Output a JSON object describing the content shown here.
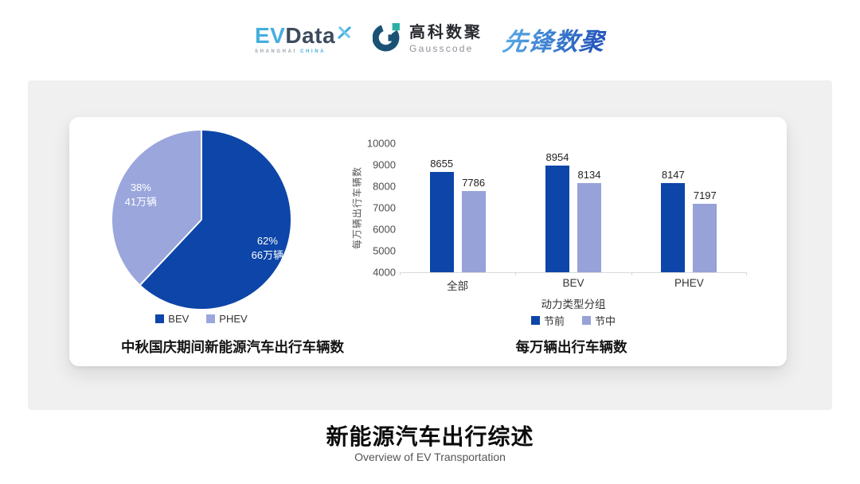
{
  "header": {
    "evdata": {
      "ev": "EV",
      "data": "Data",
      "sub_left": "SHANGHAI",
      "sub_right": "CHINA"
    },
    "gausscode": {
      "cn": "高科数聚",
      "en": "Gausscode"
    },
    "pioneer": {
      "text": "先锋数聚"
    }
  },
  "colors": {
    "primary_blue": "#0D45A8",
    "secondary_periwinkle": "#96A2D8",
    "pie_secondary": "#9AA6DC",
    "panel_gray": "#F0F0F1",
    "axis_line": "#D9D9D9",
    "evdata_cyan": "#45AEE0",
    "evdata_slate": "#3D4B5C",
    "gauss_navy": "#1A5276",
    "gauss_teal": "#2AB0A5",
    "pioneer_gradient_start": "#57A7E4",
    "pioneer_gradient_end": "#2458BC"
  },
  "chart_data": [
    {
      "type": "pie",
      "title": "中秋国庆期间新能源汽车出行车辆数",
      "start_angle_deg": 0,
      "slices": [
        {
          "label": "BEV",
          "percent": 62,
          "value": 66,
          "percent_label": "62%",
          "value_label": "66万辆",
          "color": "#0D45A8"
        },
        {
          "label": "PHEV",
          "percent": 38,
          "value": 41,
          "percent_label": "38%",
          "value_label": "41万辆",
          "color": "#9AA6DC"
        }
      ],
      "legend_position": "bottom"
    },
    {
      "type": "bar",
      "title": "每万辆出行车辆数",
      "xlabel": "动力类型分组",
      "ylabel": "每万辆出行车辆数",
      "categories": [
        "全部",
        "BEV",
        "PHEV"
      ],
      "series": [
        {
          "name": "节前",
          "values": [
            8655,
            8954,
            8147
          ],
          "color": "#0D45A8"
        },
        {
          "name": "节中",
          "values": [
            7786,
            8134,
            7197
          ],
          "color": "#96A2D8"
        }
      ],
      "ylim": [
        4000,
        10000
      ],
      "yticks": [
        4000,
        5000,
        6000,
        7000,
        8000,
        9000,
        10000
      ],
      "grid": false,
      "legend_position": "bottom"
    }
  ],
  "footer": {
    "title": "新能源汽车出行综述",
    "subtitle": "Overview of EV Transportation"
  }
}
